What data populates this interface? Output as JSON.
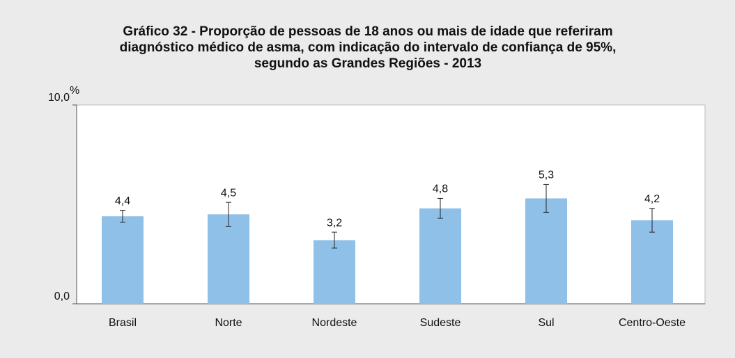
{
  "chart_data": {
    "type": "bar",
    "title": [
      "Gráfico 32 - Proporção de pessoas de 18 anos ou mais de idade que referiram",
      "diagnóstico médico de asma, com indicação do intervalo de confiança de 95%,",
      "segundo as Grandes Regiões - 2013"
    ],
    "ylabel": "%",
    "categories": [
      "Brasil",
      "Norte",
      "Nordeste",
      "Sudeste",
      "Sul",
      "Centro-Oeste"
    ],
    "values": [
      4.4,
      4.5,
      3.2,
      4.8,
      5.3,
      4.2
    ],
    "value_labels": [
      "4,4",
      "4,5",
      "3,2",
      "4,8",
      "5,3",
      "4,2"
    ],
    "errors": [
      0.3,
      0.6,
      0.4,
      0.5,
      0.7,
      0.6
    ],
    "color": "#8ec0e8",
    "ylim": [
      0,
      10
    ],
    "yticks": [
      {
        "value": 0,
        "label": "0,0"
      },
      {
        "value": 10,
        "label": "10,0"
      }
    ]
  }
}
